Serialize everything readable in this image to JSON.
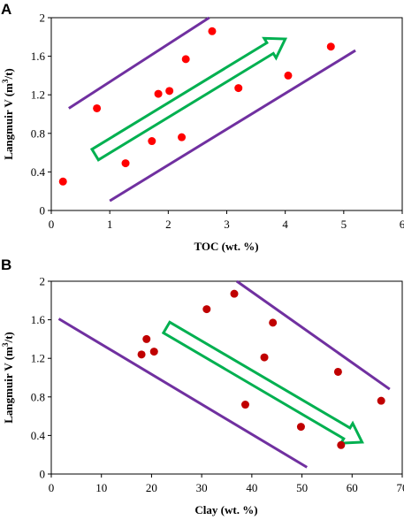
{
  "chart_data": [
    {
      "panel": "A",
      "type": "scatter",
      "xlabel": "TOC (wt. %)",
      "ylabel_main": "Langmuir  V (m",
      "ylabel_sup": "3",
      "ylabel_end": "/t)",
      "xlim": [
        0,
        6
      ],
      "ylim": [
        0,
        2
      ],
      "xticks": [
        0,
        1,
        2,
        3,
        4,
        5,
        6
      ],
      "yticks": [
        0,
        0.4,
        0.8,
        1.2,
        1.6,
        2
      ],
      "ytick_labels": [
        "0",
        "0.4",
        "0.8",
        "1.2",
        "1.6",
        "2"
      ],
      "points": [
        {
          "x": 0.2,
          "y": 0.3
        },
        {
          "x": 0.78,
          "y": 1.06
        },
        {
          "x": 1.27,
          "y": 0.49
        },
        {
          "x": 1.72,
          "y": 0.72
        },
        {
          "x": 1.83,
          "y": 1.21
        },
        {
          "x": 2.02,
          "y": 1.24
        },
        {
          "x": 2.23,
          "y": 0.76
        },
        {
          "x": 2.3,
          "y": 1.57
        },
        {
          "x": 2.75,
          "y": 1.86
        },
        {
          "x": 3.2,
          "y": 1.27
        },
        {
          "x": 4.05,
          "y": 1.4
        },
        {
          "x": 4.78,
          "y": 1.7
        }
      ],
      "bound_lines": [
        {
          "x1": 0.3,
          "y1": 1.06,
          "x2": 2.7,
          "y2": 2.0
        },
        {
          "x1": 1.0,
          "y1": 0.1,
          "x2": 5.2,
          "y2": 1.66
        }
      ],
      "trend_arrow": {
        "from": [
          0.75,
          0.58
        ],
        "to": [
          4.0,
          1.78
        ],
        "direction": "increasing"
      },
      "colors": {
        "points": "#ff0000",
        "bounds": "#7030a0",
        "arrow": "#00b050"
      }
    },
    {
      "panel": "B",
      "type": "scatter",
      "xlabel": "Clay (wt. %)",
      "ylabel_main": "Langmuir  V (m",
      "ylabel_sup": "3",
      "ylabel_end": "/t)",
      "xlim": [
        0,
        70
      ],
      "ylim": [
        0,
        2
      ],
      "xticks": [
        0,
        10,
        20,
        30,
        40,
        50,
        60,
        70
      ],
      "yticks": [
        0,
        0.4,
        0.8,
        1.2,
        1.6,
        2
      ],
      "ytick_labels": [
        "0",
        "0.4",
        "0.8",
        "1.2",
        "1.6",
        "2"
      ],
      "points": [
        {
          "x": 18.0,
          "y": 1.24
        },
        {
          "x": 19.0,
          "y": 1.4
        },
        {
          "x": 20.5,
          "y": 1.27
        },
        {
          "x": 31.0,
          "y": 1.71
        },
        {
          "x": 36.5,
          "y": 1.87
        },
        {
          "x": 38.7,
          "y": 0.72
        },
        {
          "x": 42.5,
          "y": 1.21
        },
        {
          "x": 44.2,
          "y": 1.57
        },
        {
          "x": 49.8,
          "y": 0.49
        },
        {
          "x": 57.2,
          "y": 1.06
        },
        {
          "x": 57.8,
          "y": 0.3
        },
        {
          "x": 65.8,
          "y": 0.76
        }
      ],
      "bound_lines": [
        {
          "x1": 1.5,
          "y1": 1.61,
          "x2": 51.0,
          "y2": 0.07
        },
        {
          "x1": 37.0,
          "y1": 2.0,
          "x2": 67.5,
          "y2": 0.88
        }
      ],
      "trend_arrow": {
        "from": [
          23.0,
          1.52
        ],
        "to": [
          62.0,
          0.33
        ],
        "direction": "decreasing"
      },
      "colors": {
        "points": "#c00000",
        "bounds": "#7030a0",
        "arrow": "#00b050"
      }
    }
  ]
}
